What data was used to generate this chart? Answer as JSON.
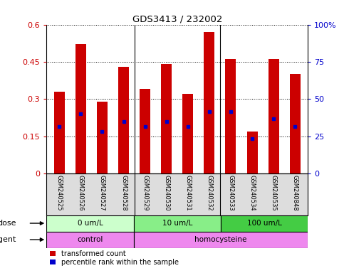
{
  "title": "GDS3413 / 232002",
  "samples": [
    "GSM240525",
    "GSM240526",
    "GSM240527",
    "GSM240528",
    "GSM240529",
    "GSM240530",
    "GSM240531",
    "GSM240532",
    "GSM240533",
    "GSM240534",
    "GSM240535",
    "GSM240848"
  ],
  "transformed_count": [
    0.33,
    0.52,
    0.29,
    0.43,
    0.34,
    0.44,
    0.32,
    0.57,
    0.46,
    0.17,
    0.46,
    0.4
  ],
  "percentile_rank": [
    0.19,
    0.24,
    0.17,
    0.21,
    0.19,
    0.21,
    0.19,
    0.25,
    0.25,
    0.14,
    0.22,
    0.19
  ],
  "bar_color": "#cc0000",
  "dot_color": "#0000cc",
  "ylim_left": [
    0,
    0.6
  ],
  "ylim_right": [
    0,
    100
  ],
  "yticks_left": [
    0,
    0.15,
    0.3,
    0.45,
    0.6
  ],
  "ytick_labels_left": [
    "0",
    "0.15",
    "0.3",
    "0.45",
    "0.6"
  ],
  "yticks_right": [
    0,
    25,
    50,
    75,
    100
  ],
  "ytick_labels_right": [
    "0",
    "25",
    "50",
    "75",
    "100%"
  ],
  "dose_groups": [
    {
      "label": "0 um/L",
      "start": 0,
      "end": 4,
      "color": "#ccffcc"
    },
    {
      "label": "10 um/L",
      "start": 4,
      "end": 8,
      "color": "#88ee88"
    },
    {
      "label": "100 um/L",
      "start": 8,
      "end": 12,
      "color": "#44cc44"
    }
  ],
  "agent_groups": [
    {
      "label": "control",
      "start": 0,
      "end": 4,
      "color": "#ee88ee"
    },
    {
      "label": "homocysteine",
      "start": 4,
      "end": 12,
      "color": "#ee88ee"
    }
  ],
  "legend_items": [
    {
      "label": "transformed count",
      "color": "#cc0000"
    },
    {
      "label": "percentile rank within the sample",
      "color": "#0000cc"
    }
  ],
  "bar_color_label": "#dddddd",
  "bar_width": 0.5,
  "n_samples": 12,
  "group_dividers": [
    4,
    8
  ]
}
